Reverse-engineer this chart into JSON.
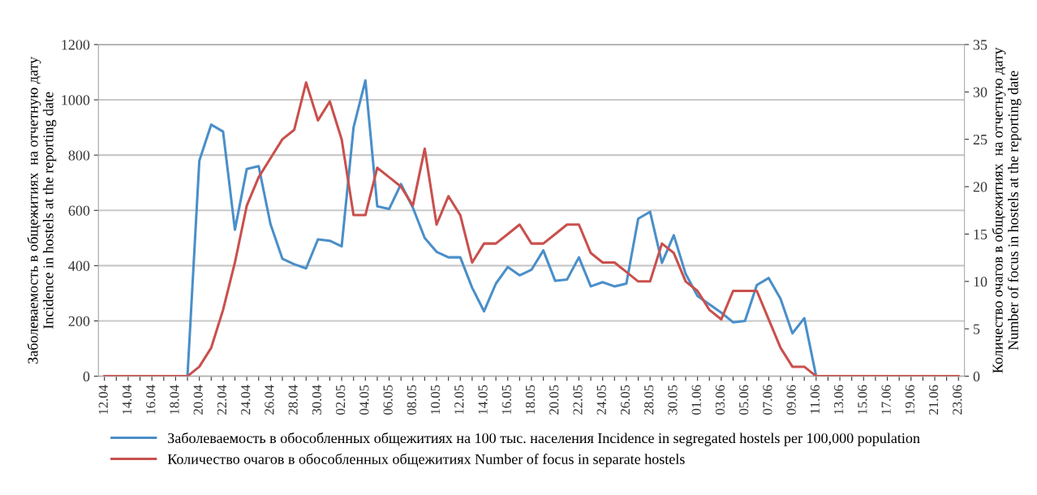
{
  "chart_data": {
    "type": "line",
    "ylabel": "Заболеваемость в общежитиях  на отчетную дату\nIncidence in hostels at the reporting date",
    "y2label": "Количество очагов в общежитиях  на отчетную дату\nNumber of focus in hostels at the reporting date",
    "categories": [
      "12.04",
      null,
      "14.04",
      null,
      "16.04",
      null,
      "18.04",
      null,
      "20.04",
      null,
      "22.04",
      null,
      "24.04",
      null,
      "26.04",
      null,
      "28.04",
      null,
      "30.04",
      null,
      "02.05",
      null,
      "04.05",
      null,
      "06.05",
      null,
      "08.05",
      null,
      "10.05",
      null,
      "12.05",
      null,
      "14.05",
      null,
      "16.05",
      null,
      "18.05",
      null,
      "20.05",
      null,
      "22.05",
      null,
      "24.05",
      null,
      "26.05",
      null,
      "28.05",
      null,
      "30.05",
      null,
      "01.06",
      null,
      "03.06",
      null,
      "05.06",
      null,
      "07.06",
      null,
      "09.06",
      null,
      "11.06",
      null,
      "13.06",
      null,
      "15.06",
      null,
      "17.06",
      null,
      "19.06",
      null,
      "21.06",
      null,
      "23.06"
    ],
    "series": [
      {
        "name": "Заболеваемость в обособленных общежитиях на 100 тыс. населения Incidence in segregated hostels per 100,000 population",
        "color": "#4a8fc9",
        "values": [
          null,
          null,
          null,
          null,
          null,
          null,
          null,
          0,
          780,
          910,
          885,
          530,
          750,
          760,
          550,
          425,
          405,
          390,
          495,
          490,
          470,
          900,
          1070,
          615,
          605,
          695,
          610,
          500,
          450,
          430,
          430,
          320,
          235,
          335,
          395,
          365,
          385,
          455,
          345,
          350,
          430,
          325,
          340,
          325,
          335,
          570,
          595,
          410,
          510,
          370,
          290,
          260,
          230,
          195,
          200,
          330,
          355,
          280,
          155,
          210,
          0,
          null,
          null,
          null,
          null,
          null,
          null,
          null,
          null,
          null,
          null,
          null,
          null
        ]
      },
      {
        "name": "Количество очагов в обособленных общежитиях Number of focus in separate hostels",
        "color": "#c9504d",
        "axis": "y2",
        "values": [
          0,
          0,
          0,
          0,
          0,
          0,
          0,
          0,
          1,
          3,
          7,
          12,
          18,
          21,
          23,
          25,
          26,
          31,
          27,
          29,
          25,
          17,
          17,
          22,
          21,
          20,
          18,
          24,
          16,
          19,
          17,
          12,
          14,
          14,
          15,
          16,
          14,
          14,
          15,
          16,
          16,
          13,
          12,
          12,
          11,
          10,
          10,
          14,
          13,
          10,
          9,
          7,
          6,
          9,
          9,
          9,
          6,
          3,
          1,
          1,
          0,
          0,
          0,
          0,
          0,
          0,
          0,
          0,
          0,
          0,
          0,
          0,
          0
        ]
      }
    ],
    "ylim": [
      0,
      1200
    ],
    "yticks": [
      0,
      200,
      400,
      600,
      800,
      1000,
      1200
    ],
    "y2lim": [
      0,
      35
    ],
    "y2ticks": [
      0,
      5,
      10,
      15,
      20,
      25,
      30,
      35
    ],
    "grid": "y",
    "legend": "bottom",
    "line_style": "solid",
    "marker": "none"
  }
}
